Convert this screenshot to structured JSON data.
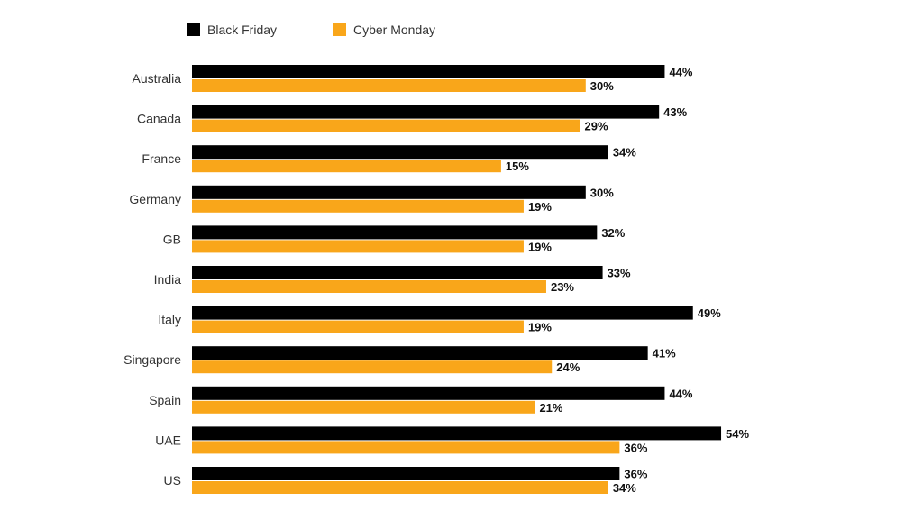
{
  "chart_data": {
    "type": "bar",
    "orientation": "horizontal",
    "title": "",
    "xlabel": "",
    "ylabel": "",
    "categories": [
      "Australia",
      "Canada",
      "France",
      "Germany",
      "GB",
      "India",
      "Italy",
      "Singapore",
      "Spain",
      "UAE",
      "US"
    ],
    "series": [
      {
        "name": "Black Friday",
        "color": "#000000",
        "values": [
          44,
          43,
          34,
          30,
          32,
          33,
          49,
          41,
          44,
          54,
          36
        ]
      },
      {
        "name": "Cyber Monday",
        "color": "#F9A61A",
        "values": [
          30,
          29,
          15,
          19,
          19,
          23,
          19,
          24,
          21,
          36,
          34
        ]
      }
    ],
    "value_suffix": "%",
    "legend": "top-left",
    "grid": false
  }
}
